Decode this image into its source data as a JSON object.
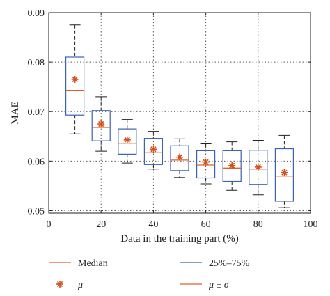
{
  "chart_data": {
    "type": "box",
    "xlabel": "Data in the training part (%)",
    "ylabel": "MAE",
    "xlim": [
      0,
      100
    ],
    "ylim": [
      0.0495,
      0.09
    ],
    "xticks": [
      0,
      20,
      40,
      60,
      80,
      100
    ],
    "xtick_labels": [
      "0",
      "20",
      "40",
      "60",
      "80",
      "100"
    ],
    "yticks": [
      0.05,
      0.06,
      0.07,
      0.08,
      0.09
    ],
    "ytick_labels": [
      "0.05",
      "0.06",
      "0.07",
      "0.08",
      "0.09"
    ],
    "grid": true,
    "boxes": [
      {
        "x": 10,
        "q1": 0.0693,
        "q3": 0.081,
        "median": 0.0743,
        "mean": 0.0765,
        "whisker_low": 0.0655,
        "whisker_high": 0.0875
      },
      {
        "x": 20,
        "q1": 0.0641,
        "q3": 0.0702,
        "median": 0.0668,
        "mean": 0.0675,
        "whisker_low": 0.062,
        "whisker_high": 0.073
      },
      {
        "x": 30,
        "q1": 0.0614,
        "q3": 0.0665,
        "median": 0.0636,
        "mean": 0.0643,
        "whisker_low": 0.0596,
        "whisker_high": 0.0684
      },
      {
        "x": 40,
        "q1": 0.0593,
        "q3": 0.0646,
        "median": 0.0617,
        "mean": 0.0624,
        "whisker_low": 0.0584,
        "whisker_high": 0.066
      },
      {
        "x": 50,
        "q1": 0.0581,
        "q3": 0.0631,
        "median": 0.0602,
        "mean": 0.0608,
        "whisker_low": 0.0567,
        "whisker_high": 0.0645
      },
      {
        "x": 60,
        "q1": 0.0566,
        "q3": 0.0621,
        "median": 0.0592,
        "mean": 0.0598,
        "whisker_low": 0.0554,
        "whisker_high": 0.0635
      },
      {
        "x": 70,
        "q1": 0.0559,
        "q3": 0.0621,
        "median": 0.0586,
        "mean": 0.0591,
        "whisker_low": 0.0541,
        "whisker_high": 0.0639
      },
      {
        "x": 80,
        "q1": 0.0553,
        "q3": 0.0622,
        "median": 0.0584,
        "mean": 0.0588,
        "whisker_low": 0.0532,
        "whisker_high": 0.0642
      },
      {
        "x": 90,
        "q1": 0.0519,
        "q3": 0.0625,
        "median": 0.057,
        "mean": 0.0577,
        "whisker_low": 0.0506,
        "whisker_high": 0.0652
      }
    ],
    "legend": [
      {
        "key": "median",
        "label": "Median"
      },
      {
        "key": "mean",
        "label": "μ"
      },
      {
        "key": "iqr",
        "label": "25%–75%"
      },
      {
        "key": "whisker",
        "label": "μ ± σ"
      }
    ],
    "legend_placement": "bottom",
    "colors": {
      "box": "#3a62b5",
      "median": "#e0602a",
      "mean": "#d4501e",
      "whisker": "#222222",
      "grid": "#555555",
      "axis": "#222222"
    }
  }
}
